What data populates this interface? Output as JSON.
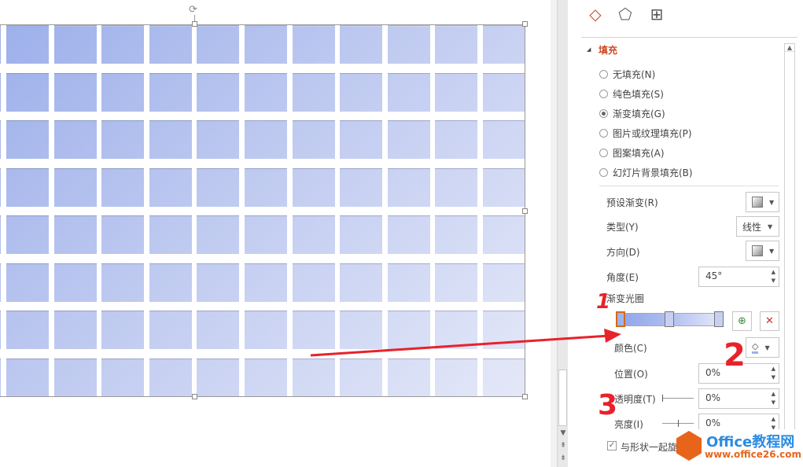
{
  "panel": {
    "tabs": [
      {
        "icon": "paint-bucket-icon",
        "active": true
      },
      {
        "icon": "pentagon-icon",
        "active": false
      },
      {
        "icon": "size-position-icon",
        "active": false
      }
    ],
    "section_title": "填充",
    "fill_options": [
      {
        "label": "无填充(N)",
        "selected": false
      },
      {
        "label": "纯色填充(S)",
        "selected": false
      },
      {
        "label": "渐变填充(G)",
        "selected": true
      },
      {
        "label": "图片或纹理填充(P)",
        "selected": false
      },
      {
        "label": "图案填充(A)",
        "selected": false
      },
      {
        "label": "幻灯片背景填充(B)",
        "selected": false
      }
    ],
    "preset_label": "预设渐变(R)",
    "type_label": "类型(Y)",
    "type_value": "线性",
    "direction_label": "方向(D)",
    "angle_label": "角度(E)",
    "angle_value": "45°",
    "gradient_stops_label": "渐变光圈",
    "color_label": "颜色(C)",
    "position_label": "位置(O)",
    "position_value": "0%",
    "transparency_label": "透明度(T)",
    "transparency_value": "0%",
    "brightness_label": "亮度(I)",
    "brightness_value": "0%",
    "rotate_with_shape_label": "与形状一起旋转",
    "rotate_with_shape_checked": true
  },
  "annotations": {
    "one": "1",
    "two": "2",
    "three": "3",
    "color": "#e8222a"
  },
  "watermark": {
    "brand": "Office教程网",
    "url": "www.office26.com"
  },
  "colors": {
    "accent": "#d04a23",
    "gradient_start": "#9db0ea",
    "gradient_end": "#e4e8f8"
  }
}
